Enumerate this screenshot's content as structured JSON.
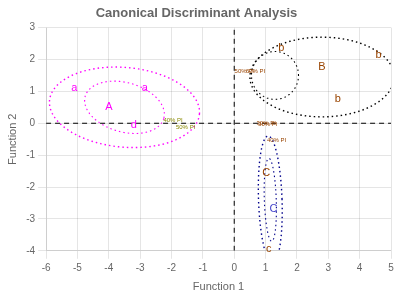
{
  "chart_data": {
    "type": "ellipse",
    "title": "Canonical Discriminant Analysis",
    "xlabel": "Function 1",
    "ylabel": "Function 2",
    "xlim": [
      -6,
      5
    ],
    "ylim": [
      -4,
      3
    ],
    "xticks": [
      -6,
      -5,
      -4,
      -3,
      -2,
      -1,
      0,
      1,
      2,
      3,
      4,
      5
    ],
    "yticks": [
      -4,
      -3,
      -2,
      -1,
      0,
      1,
      2,
      3
    ],
    "grid": true,
    "reference_lines": {
      "x": [
        0
      ],
      "y": [
        0
      ],
      "color": "#000000",
      "line_style": "dashed"
    },
    "groups": [
      {
        "color": "#ff00ff",
        "line_style": "dotted",
        "ellipses": [
          {
            "center": [
              -3.5,
              0.5
            ],
            "width": 4.8,
            "height": 2.5,
            "angle": -5
          },
          {
            "center": [
              -3.5,
              0.5
            ],
            "width": 2.6,
            "height": 1.55,
            "angle": -15
          }
        ],
        "labels": [
          {
            "text": "a",
            "x": -5.1,
            "y": 1.1,
            "color": "#ff00ff"
          },
          {
            "text": "A",
            "x": -4.0,
            "y": 0.5,
            "color": "#ff00ff"
          },
          {
            "text": "a",
            "x": -2.85,
            "y": 1.1,
            "color": "#ff00ff"
          },
          {
            "text": "d",
            "x": -3.2,
            "y": -0.05,
            "color": "#ff00ff"
          },
          {
            "text": "40% PI",
            "x": -1.95,
            "y": 0.08,
            "color": "#888800"
          },
          {
            "text": "50% PI",
            "x": -1.55,
            "y": -0.12,
            "color": "#888800"
          }
        ]
      },
      {
        "color": "#000000",
        "line_style": "dotted",
        "ellipses": [
          {
            "center": [
              2.8,
              1.45
            ],
            "width": 4.6,
            "height": 2.5,
            "angle": 0
          },
          {
            "center": [
              1.3,
              1.5
            ],
            "width": 1.5,
            "height": 1.5,
            "angle": 0
          }
        ],
        "labels": [
          {
            "text": "b",
            "x": 1.5,
            "y": 2.35,
            "color": "#994400"
          },
          {
            "text": "B",
            "x": 2.8,
            "y": 1.75,
            "color": "#994400"
          },
          {
            "text": "b",
            "x": 4.6,
            "y": 2.15,
            "color": "#994400"
          },
          {
            "text": "b",
            "x": 3.3,
            "y": 0.75,
            "color": "#994400"
          },
          {
            "text": "50% PI",
            "x": 0.32,
            "y": 1.62,
            "color": "#994400"
          },
          {
            "text": "60% PI",
            "x": 0.68,
            "y": 1.62,
            "color": "#994400"
          },
          {
            "text": "30% PI",
            "x": 1.02,
            "y": 0.0,
            "color": "#994400"
          }
        ]
      },
      {
        "color": "#00008B",
        "line_style": "dotted",
        "ellipses": [
          {
            "center": [
              1.15,
              -2.4
            ],
            "width": 0.75,
            "height": 4.0,
            "angle": 2
          },
          {
            "center": [
              1.15,
              -2.4
            ],
            "width": 0.38,
            "height": 2.6,
            "angle": 2
          }
        ],
        "labels": [
          {
            "text": "C",
            "x": 1.02,
            "y": -1.55,
            "color": "#994400"
          },
          {
            "text": "C",
            "x": 1.25,
            "y": -2.7,
            "color": "#4444cc"
          },
          {
            "text": "c",
            "x": 1.1,
            "y": -3.93,
            "color": "#994400"
          },
          {
            "text": "30% PI",
            "x": 1.07,
            "y": -0.02,
            "color": "#994400"
          },
          {
            "text": "40% PI",
            "x": 1.35,
            "y": -0.55,
            "color": "#994400"
          }
        ]
      }
    ]
  }
}
